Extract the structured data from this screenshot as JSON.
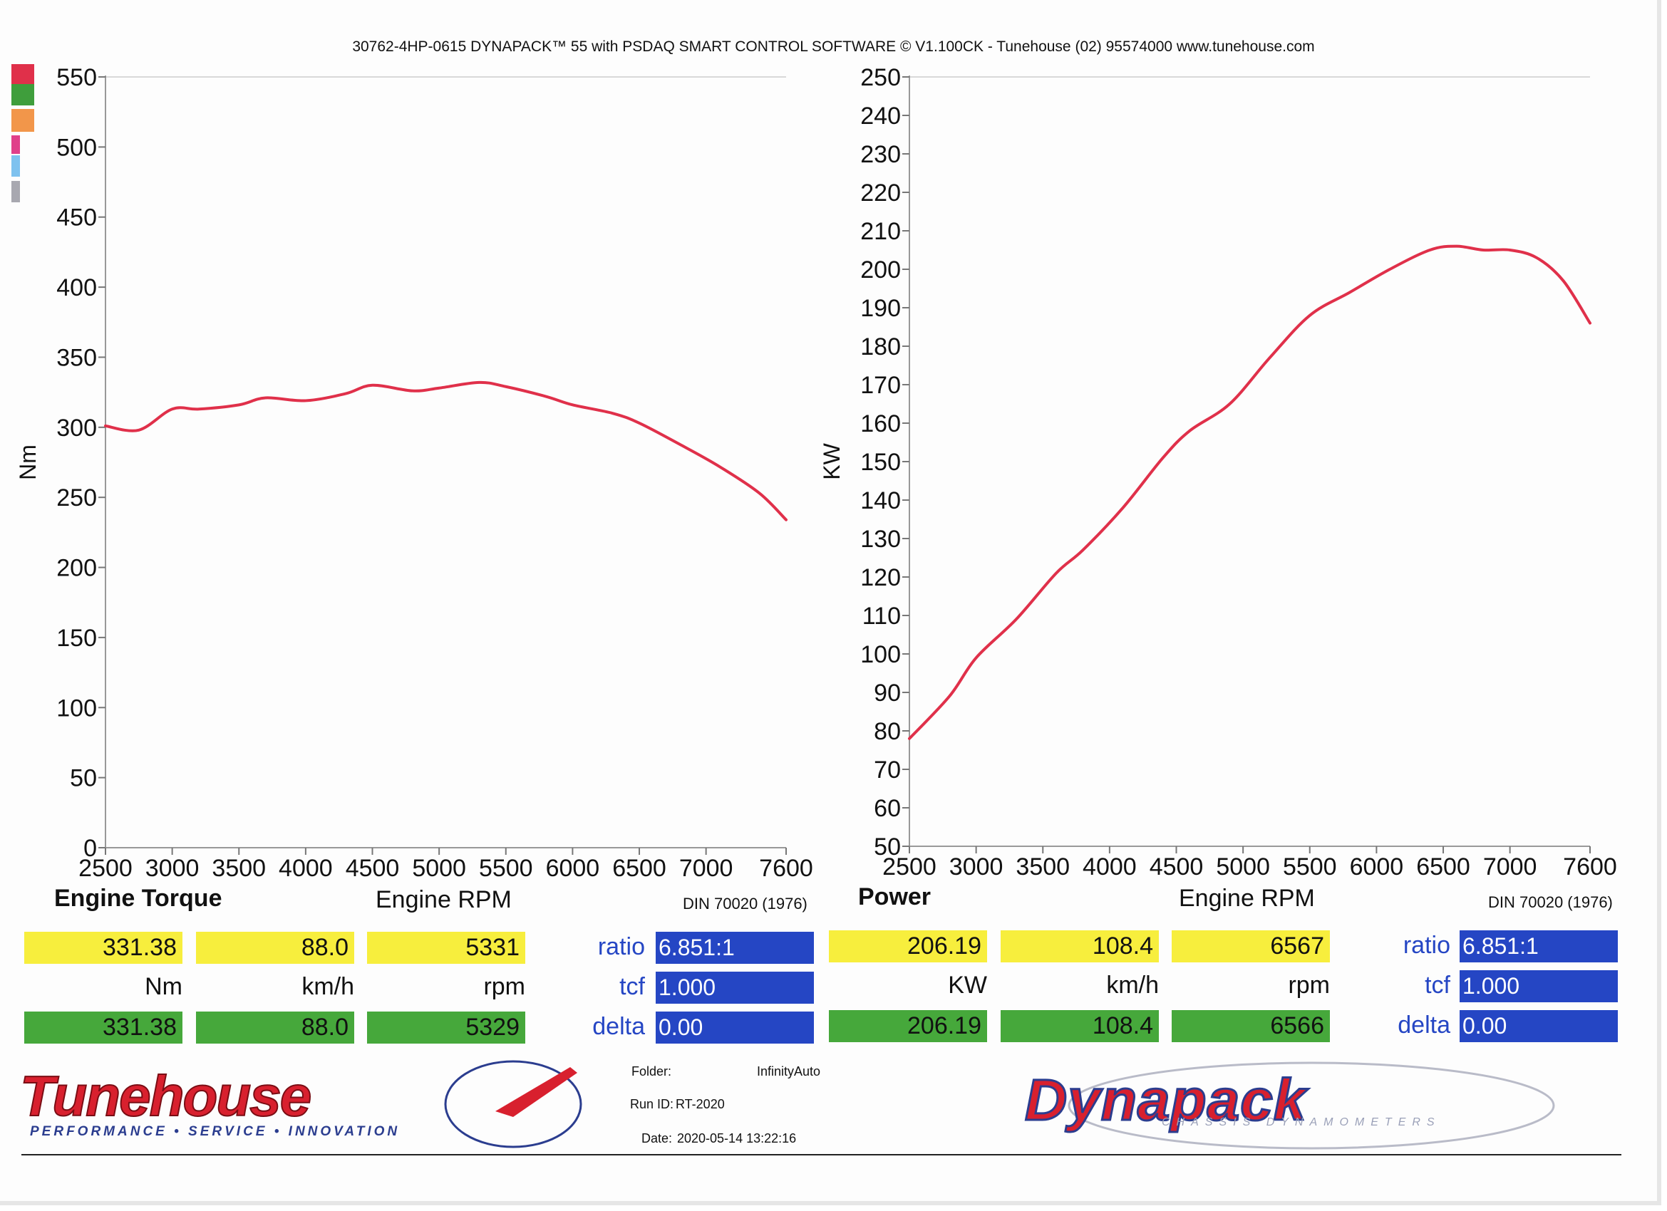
{
  "header": "30762-4HP-0615 DYNAPACK™ 55 with PSDAQ SMART CONTROL SOFTWARE © V1.100CK - Tunehouse (02) 95574000  www.tunehouse.com",
  "legend_colors": [
    "#e0304a",
    "#3f9e3c",
    "#f2964a",
    "#e0408a",
    "#7ec2ef",
    "#a8a8b0"
  ],
  "chart_data": [
    {
      "type": "line",
      "title": "Engine Torque",
      "xlabel": "Engine RPM",
      "ylabel": "Nm",
      "standard": "DIN 70020 (1976)",
      "xlim": [
        2500,
        7600
      ],
      "ylim": [
        0,
        550
      ],
      "x_ticks": [
        2500,
        3000,
        3500,
        4000,
        4500,
        5000,
        5500,
        6000,
        6500,
        7000,
        7600
      ],
      "y_ticks": [
        0,
        50,
        100,
        150,
        200,
        250,
        300,
        350,
        400,
        450,
        500,
        550
      ],
      "grid": false,
      "series": [
        {
          "color": "#e0304a",
          "x": [
            2500,
            2750,
            3000,
            3200,
            3500,
            3700,
            4000,
            4300,
            4500,
            4800,
            5000,
            5300,
            5500,
            5800,
            6000,
            6300,
            6500,
            6800,
            7100,
            7400,
            7600
          ],
          "y": [
            301,
            298,
            313,
            313,
            316,
            321,
            319,
            324,
            330,
            326,
            328,
            332,
            329,
            322,
            316,
            310,
            303,
            288,
            272,
            253,
            234
          ]
        }
      ]
    },
    {
      "type": "line",
      "title": "Power",
      "xlabel": "Engine RPM",
      "ylabel": "KW",
      "standard": "DIN 70020 (1976)",
      "xlim": [
        2500,
        7600
      ],
      "ylim": [
        50,
        250
      ],
      "x_ticks": [
        2500,
        3000,
        3500,
        4000,
        4500,
        5000,
        5500,
        6000,
        6500,
        7000,
        7600
      ],
      "y_ticks": [
        50,
        60,
        70,
        80,
        90,
        100,
        110,
        120,
        130,
        140,
        150,
        160,
        170,
        180,
        190,
        200,
        210,
        220,
        230,
        240,
        250
      ],
      "grid": false,
      "series": [
        {
          "color": "#e0304a",
          "x": [
            2500,
            2800,
            3000,
            3300,
            3600,
            3800,
            4100,
            4400,
            4600,
            4900,
            5200,
            5500,
            5800,
            6100,
            6400,
            6600,
            6800,
            7000,
            7200,
            7400,
            7600
          ],
          "y": [
            78,
            89,
            99,
            109,
            121,
            127,
            138,
            151,
            158,
            165,
            177,
            188,
            194,
            200,
            205,
            206,
            205,
            205,
            203,
            197,
            186
          ]
        }
      ]
    }
  ],
  "torque_panel": {
    "top": [
      "331.38",
      "88.0",
      "5331"
    ],
    "units": [
      "Nm",
      "km/h",
      "rpm"
    ],
    "bottom": [
      "331.38",
      "88.0",
      "5329"
    ],
    "ratio_label": "ratio",
    "ratio": "6.851:1",
    "tcf_label": "tcf",
    "tcf": "1.000",
    "delta_label": "delta",
    "delta": "0.00"
  },
  "power_panel": {
    "top": [
      "206.19",
      "108.4",
      "6567"
    ],
    "units": [
      "KW",
      "km/h",
      "rpm"
    ],
    "bottom": [
      "206.19",
      "108.4",
      "6566"
    ],
    "ratio_label": "ratio",
    "ratio": "6.851:1",
    "tcf_label": "tcf",
    "tcf": "1.000",
    "delta_label": "delta",
    "delta": "0.00"
  },
  "meta": {
    "folder_label": "Folder:",
    "folder": "InfinityAuto",
    "run_label": "Run ID:",
    "run": "RT-2020",
    "date_label": "Date:",
    "date": "2020-05-14 13:22:16"
  },
  "logos": {
    "tunehouse": "Tunehouse",
    "tunehouse_tag": "PERFORMANCE • SERVICE • INNOVATION",
    "dynapack": "Dynapack",
    "dynapack_tag": "CHASSIS DYNAMOMETERS",
    "brand_red": "#d8202e",
    "brand_blue": "#2b3d8f"
  }
}
